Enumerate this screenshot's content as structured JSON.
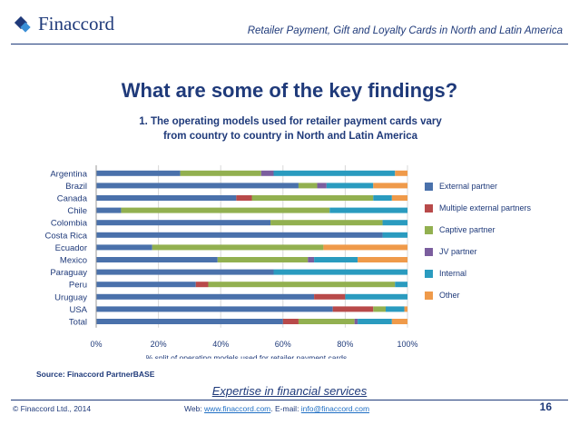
{
  "brand": {
    "name": "Finaccord"
  },
  "header": {
    "title": "Retailer Payment, Gift and Loyalty Cards in North and Latin America"
  },
  "page_heading": "What are some of the key findings?",
  "chart_title": "1. The operating models used for retailer payment cards vary from country to country in North and Latin America",
  "source": "Source: Finaccord PartnerBASE",
  "tagline": "Expertise in financial services",
  "footer": {
    "copyright": "© Finaccord Ltd., 2014",
    "web_prefix": "Web: ",
    "web_link": "www.finaccord.com",
    "email_prefix": ". E-mail: ",
    "email_link": "info@finaccord.com",
    "page_number": "16"
  },
  "chart_data": {
    "type": "bar",
    "orientation": "horizontal",
    "stacked": true,
    "categories": [
      "Argentina",
      "Brazil",
      "Canada",
      "Chile",
      "Colombia",
      "Costa Rica",
      "Ecuador",
      "Mexico",
      "Paraguay",
      "Peru",
      "Uruguay",
      "USA",
      "Total"
    ],
    "series": [
      {
        "name": "External partner",
        "color": "#4a71ab",
        "values": [
          27,
          65,
          45,
          8,
          56,
          92,
          18,
          39,
          57,
          32,
          70,
          76,
          60
        ]
      },
      {
        "name": "Multiple external partners",
        "color": "#b84a4a",
        "values": [
          0,
          0,
          5,
          0,
          0,
          0,
          0,
          0,
          0,
          4,
          10,
          13,
          5
        ]
      },
      {
        "name": "Captive partner",
        "color": "#92b050",
        "values": [
          26,
          6,
          39,
          67,
          36,
          0,
          55,
          29,
          0,
          60,
          0,
          4,
          18
        ]
      },
      {
        "name": "JV partner",
        "color": "#7b5e9e",
        "values": [
          4,
          3,
          0,
          0,
          0,
          0,
          0,
          2,
          0,
          0,
          0,
          0,
          1
        ]
      },
      {
        "name": "Internal",
        "color": "#2a9bbf",
        "values": [
          39,
          15,
          6,
          25,
          8,
          8,
          0,
          14,
          43,
          4,
          20,
          6,
          11
        ]
      },
      {
        "name": "Other",
        "color": "#ef9a4a",
        "values": [
          4,
          11,
          5,
          0,
          0,
          0,
          27,
          16,
          0,
          0,
          0,
          1,
          5
        ]
      }
    ],
    "xlabel": "% split of operating models used for retailer payment cards",
    "xlim": [
      0,
      100
    ],
    "xticks": [
      "0%",
      "20%",
      "40%",
      "60%",
      "80%",
      "100%"
    ],
    "grid": true,
    "legend_position": "right"
  }
}
